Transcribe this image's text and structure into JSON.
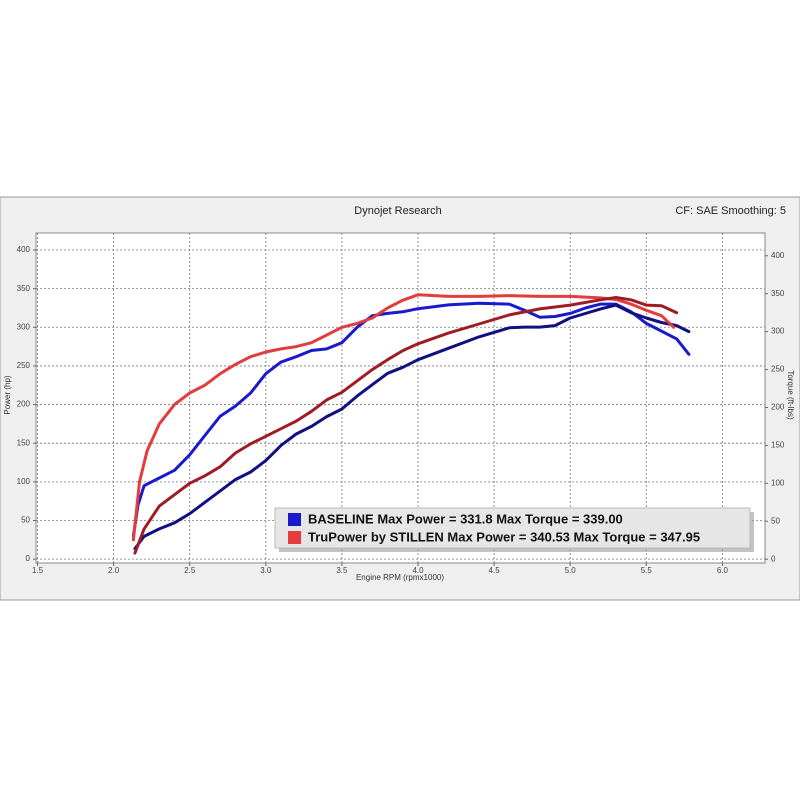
{
  "chart_data": {
    "type": "line",
    "title": "Dynojet Research",
    "subtitle": "CF: SAE Smoothing: 5",
    "x_label": "Engine RPM (rpmx1000)",
    "y_label": "Power (hp)",
    "y2_label": "Torque (ft-lbs)",
    "xlim": [
      1.49,
      6.28
    ],
    "xticks": [
      1.5,
      {
        "value": 2,
        "label": "2.0"
      },
      2.5,
      {
        "value": 3,
        "label": "3.0"
      },
      3.5,
      {
        "value": 4,
        "label": "4.0"
      },
      4.5,
      {
        "value": 5,
        "label": "5.0"
      },
      5.5,
      {
        "value": 6,
        "label": "6.0"
      }
    ],
    "ylim": [
      -5,
      422
    ],
    "yticks": [
      0,
      50,
      100,
      150,
      200,
      250,
      300,
      350,
      400
    ],
    "y2lim": [
      -5,
      430
    ],
    "y2ticks": [
      0,
      50,
      100,
      150,
      200,
      250,
      300,
      350,
      400
    ],
    "grid": true,
    "legend_position": "bottom-right",
    "legend": [
      {
        "label": "BASELINE Max Power = 331.8 Max Torque = 339.00",
        "color": "#1a1acc"
      },
      {
        "label": "TruPower by STILLEN Max Power = 340.53 Max Torque = 347.95",
        "color": "#e23c3c"
      }
    ],
    "series": [
      {
        "color": "#1a1acc",
        "axis": "y",
        "x": [
          2.13,
          2.16,
          2.2,
          2.3,
          2.4,
          2.5,
          2.6,
          2.7,
          2.8,
          2.9,
          3.0,
          3.1,
          3.2,
          3.3,
          3.4,
          3.5,
          3.6,
          3.7,
          3.8,
          3.9,
          4.0,
          4.2,
          4.4,
          4.6,
          4.7,
          4.8,
          4.9,
          5.0,
          5.1,
          5.2,
          5.3,
          5.4,
          5.5,
          5.6,
          5.7,
          5.78
        ],
        "values": [
          30,
          70,
          95,
          105,
          115,
          135,
          160,
          185,
          198,
          215,
          240,
          255,
          262,
          270,
          272,
          280,
          300,
          315,
          318,
          320,
          324,
          329,
          331,
          330,
          322,
          313,
          314,
          318,
          325,
          330,
          330,
          320,
          305,
          295,
          285,
          265
        ]
      },
      {
        "color": "#101080",
        "axis": "y2",
        "x": [
          2.14,
          2.2,
          2.3,
          2.4,
          2.5,
          2.6,
          2.7,
          2.8,
          2.9,
          3.0,
          3.1,
          3.2,
          3.3,
          3.4,
          3.5,
          3.6,
          3.7,
          3.8,
          3.9,
          4.0,
          4.2,
          4.4,
          4.6,
          4.7,
          4.8,
          4.9,
          5.0,
          5.2,
          5.3,
          5.4,
          5.5,
          5.6,
          5.7,
          5.78
        ],
        "values": [
          14,
          30,
          40,
          48,
          60,
          75,
          90,
          105,
          115,
          130,
          150,
          165,
          175,
          188,
          198,
          215,
          230,
          245,
          253,
          263,
          278,
          293,
          305,
          306,
          306,
          308,
          318,
          330,
          335,
          325,
          318,
          312,
          308,
          300
        ]
      },
      {
        "color": "#e23c3c",
        "axis": "y",
        "x": [
          2.13,
          2.17,
          2.22,
          2.3,
          2.4,
          2.5,
          2.6,
          2.7,
          2.8,
          2.9,
          3.0,
          3.1,
          3.2,
          3.3,
          3.4,
          3.5,
          3.6,
          3.7,
          3.8,
          3.9,
          4.0,
          4.2,
          4.4,
          4.6,
          4.8,
          5.0,
          5.2,
          5.3,
          5.4,
          5.5,
          5.6,
          5.68
        ],
        "values": [
          25,
          100,
          140,
          175,
          200,
          215,
          225,
          240,
          252,
          262,
          268,
          272,
          275,
          280,
          290,
          300,
          305,
          312,
          325,
          335,
          342,
          340,
          340,
          341,
          340,
          340,
          338,
          336,
          330,
          322,
          315,
          300
        ]
      },
      {
        "color": "#a01c24",
        "axis": "y2",
        "x": [
          2.14,
          2.2,
          2.3,
          2.4,
          2.5,
          2.6,
          2.7,
          2.8,
          2.9,
          3.0,
          3.1,
          3.2,
          3.3,
          3.4,
          3.5,
          3.6,
          3.7,
          3.8,
          3.9,
          4.0,
          4.2,
          4.4,
          4.6,
          4.8,
          5.0,
          5.2,
          5.3,
          5.4,
          5.5,
          5.6,
          5.7
        ],
        "values": [
          8,
          40,
          70,
          85,
          100,
          110,
          122,
          140,
          152,
          162,
          172,
          182,
          195,
          210,
          220,
          235,
          250,
          263,
          275,
          284,
          298,
          310,
          322,
          330,
          335,
          342,
          345,
          342,
          335,
          334,
          325
        ]
      }
    ]
  }
}
